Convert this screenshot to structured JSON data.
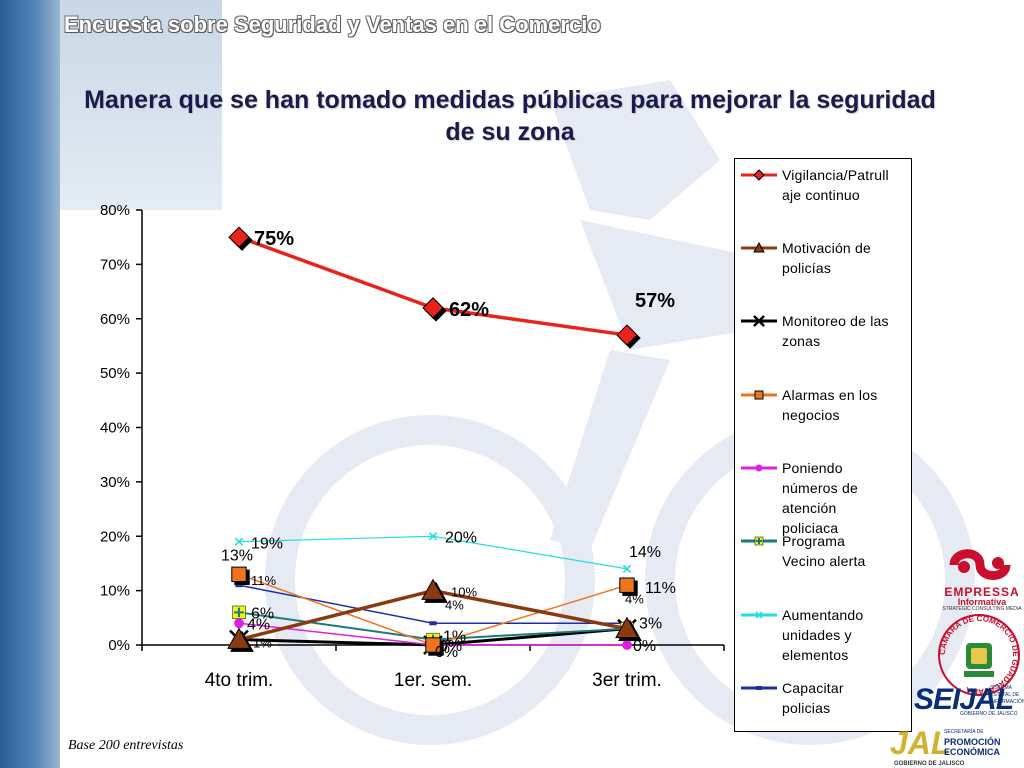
{
  "header": {
    "title": "Encuesta sobre Seguridad y Ventas en el Comercio"
  },
  "footer": {
    "base_note": "Base  200 entrevistas"
  },
  "logos": {
    "empressa_name": "EMPRESSA",
    "empressa_sub": "Informativa",
    "empressa_tag": "STRATEGIC CONSULTING MEDIA",
    "camara_text": "CÁMARA DE COMERCIO DE GUADALAJARA",
    "seijal_name": "SEIJAL",
    "seijal_text": "SISTEMA ESTATAL DE INFORMACIÓN",
    "seijal_gob": "GOBIERNO DE JALISCO",
    "promocion_brand": "JAL",
    "promocion_sec": "SECRETARÍA DE",
    "promocion_name": "PROMOCIÓN ECONÓMICA",
    "promocion_gob": "GOBIERNO DE JALISCO"
  },
  "chart_data": {
    "type": "line",
    "title": "Manera que se han tomado medidas públicas para mejorar la seguridad de su zona",
    "categories": [
      "4to trim.",
      "1er. sem.",
      "3er trim."
    ],
    "y_ticks": [
      "0%",
      "10%",
      "20%",
      "30%",
      "40%",
      "50%",
      "60%",
      "70%",
      "80%"
    ],
    "ylim": [
      0,
      80
    ],
    "grid": false,
    "legend_position": "right",
    "series": [
      {
        "name": "Vigilancia/Patrullaje continuo",
        "legend_lines": [
          "Vigilancia/Patrull",
          "aje continuo"
        ],
        "color": "#e8231b",
        "marker": "diamond",
        "values": [
          75,
          62,
          57
        ],
        "labels": [
          "75%",
          "62%",
          "57%"
        ]
      },
      {
        "name": "Motivación de policías",
        "legend_lines": [
          "Motivación de",
          "policías"
        ],
        "color": "#8b3a10",
        "marker": "triangle",
        "values": [
          1,
          10,
          3
        ],
        "labels": [
          "",
          "10%",
          ""
        ]
      },
      {
        "name": "Monitoreo de las zonas",
        "legend_lines": [
          "Monitoreo de las",
          "zonas"
        ],
        "color": "#000000",
        "marker": "x",
        "values": [
          1,
          0,
          3
        ],
        "labels": [
          "1%",
          "",
          ""
        ]
      },
      {
        "name": "Alarmas en los negocios",
        "legend_lines": [
          "Alarmas en los",
          "negocios"
        ],
        "color": "#f07420",
        "marker": "square",
        "values": [
          13,
          0,
          11
        ],
        "labels": [
          "13%",
          "0%",
          "11%"
        ]
      },
      {
        "name": "Poniendo números de atención policiaca",
        "legend_lines": [
          "Poniendo",
          "números de",
          "atención",
          "policiaca"
        ],
        "color": "#e020e0",
        "marker": "circle",
        "values": [
          4,
          0,
          0
        ],
        "labels": [
          "4%",
          "0%",
          "0%"
        ]
      },
      {
        "name": "Programa Vecino alerta",
        "legend_lines": [
          "Programa",
          "Vecino alerta"
        ],
        "color": "#1a7a7a",
        "marker": "plus",
        "values": [
          6,
          1,
          3
        ],
        "labels": [
          "6%",
          "1%",
          "3%"
        ]
      },
      {
        "name": "Aumentando unidades y elementos",
        "legend_lines": [
          "Aumentando",
          "unidades y",
          "elementos"
        ],
        "color": "#22dde6",
        "marker": "star",
        "values": [
          19,
          20,
          14
        ],
        "labels": [
          "19%",
          "20%",
          "14%"
        ]
      },
      {
        "name": "Capacitar policias",
        "legend_lines": [
          "Capacitar",
          "policias"
        ],
        "color": "#1a2ea8",
        "marker": "dash",
        "values": [
          11,
          4,
          4
        ],
        "labels": [
          "11%",
          "4%",
          "4%"
        ]
      }
    ]
  }
}
